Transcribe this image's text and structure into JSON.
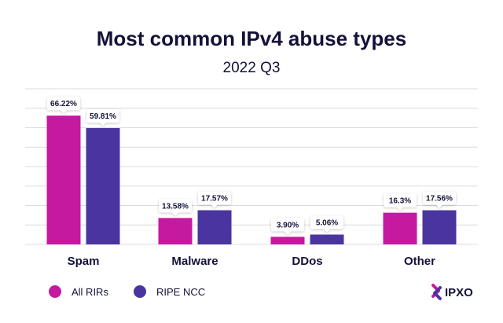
{
  "chart_data": {
    "type": "bar",
    "title": "Most common IPv4 abuse types",
    "subtitle": "2022 Q3",
    "categories": [
      "Spam",
      "Malware",
      "DDos",
      "Other"
    ],
    "series": [
      {
        "name": "All RIRs",
        "values": [
          66.22,
          13.58,
          3.9,
          16.3
        ],
        "labels": [
          "66.22%",
          "13.58%",
          "3.90%",
          "16.3%"
        ],
        "color": "#c5199f"
      },
      {
        "name": "RIPE NCC",
        "values": [
          59.81,
          17.57,
          5.06,
          17.56
        ],
        "labels": [
          "59.81%",
          "17.57%",
          "5.06%",
          "17.56%"
        ],
        "color": "#4a35a0"
      }
    ],
    "ylim": [
      0,
      80
    ],
    "grid": true,
    "legend": "bottom-left"
  },
  "brand": {
    "name": "IPXO",
    "colors": [
      "#c5199f",
      "#4a35a0"
    ]
  }
}
